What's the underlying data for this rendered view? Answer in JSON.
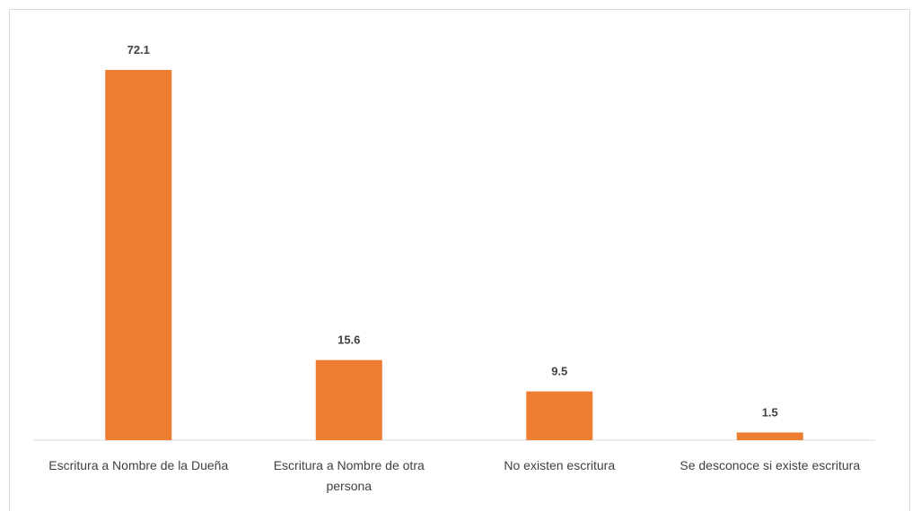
{
  "chart_data": {
    "type": "bar",
    "categories": [
      "Escritura a Nombre de la Dueña",
      "Escritura a Nombre de otra persona",
      "No existen escritura",
      "Se desconoce si existe escritura"
    ],
    "values": [
      72.1,
      15.6,
      9.5,
      1.5
    ],
    "color": "#ed7d31"
  }
}
